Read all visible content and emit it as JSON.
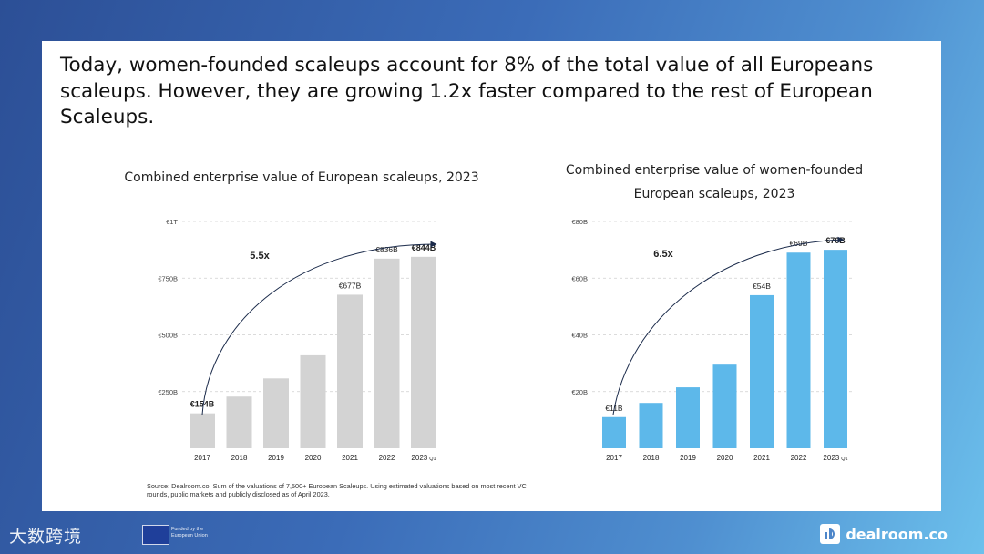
{
  "headline": "Today, women-founded scaleups account for 8% of the total value of all Europeans scaleups. However, they are growing 1.2x faster compared to the rest of European Scaleups.",
  "source": "Source: Dealroom.co. Sum of the valuations of 7,500+ European Scaleups. Using estimated valuations based on most recent VC rounds, public markets and publicly disclosed as of April 2023.",
  "footer": {
    "watermark_logo": "大数跨境",
    "eu_text": "Funded by the European Union",
    "brand": "dealroom.co"
  },
  "colors": {
    "left_bars": "#d3d3d3",
    "right_bars": "#5db8ea",
    "gridline": "#cfcfcf",
    "background_start": "#2c4f96",
    "background_end": "#6cc0ec"
  },
  "chart_data": [
    {
      "type": "bar",
      "title": "Combined enterprise  value of European scaleups, 2023",
      "categories": [
        "2017",
        "2018",
        "2019",
        "2020",
        "2021",
        "2022",
        "2023"
      ],
      "category_suffix": [
        "",
        "",
        "",
        "",
        "",
        "",
        "Q1"
      ],
      "values": [
        154,
        228,
        308,
        410,
        677,
        836,
        844
      ],
      "data_labels": [
        "€154B",
        "",
        "",
        "",
        "€677B",
        "€836B",
        "€844B"
      ],
      "bold_labels": [
        true,
        false,
        false,
        false,
        false,
        false,
        true
      ],
      "ylim": [
        0,
        1000
      ],
      "yticks": [
        250,
        500,
        750,
        1000
      ],
      "ytick_labels": [
        "€250B",
        "€500B",
        "€750B",
        "€1T"
      ],
      "grid": true,
      "annotation": "5.5x"
    },
    {
      "type": "bar",
      "title": "Combined enterprise  value of women-founded European scaleups, 2023",
      "categories": [
        "2017",
        "2018",
        "2019",
        "2020",
        "2021",
        "2022",
        "2023"
      ],
      "category_suffix": [
        "",
        "",
        "",
        "",
        "",
        "",
        "Q1"
      ],
      "values": [
        11,
        16,
        21.5,
        29.5,
        54,
        69,
        70
      ],
      "data_labels": [
        "€11B",
        "",
        "",
        "",
        "€54B",
        "€69B",
        "€70B"
      ],
      "bold_labels": [
        false,
        false,
        false,
        false,
        false,
        false,
        true
      ],
      "ylim": [
        0,
        80
      ],
      "yticks": [
        20,
        40,
        60,
        80
      ],
      "ytick_labels": [
        "€20B",
        "€40B",
        "€60B",
        "€80B"
      ],
      "grid": true,
      "annotation": "6.5x"
    }
  ]
}
